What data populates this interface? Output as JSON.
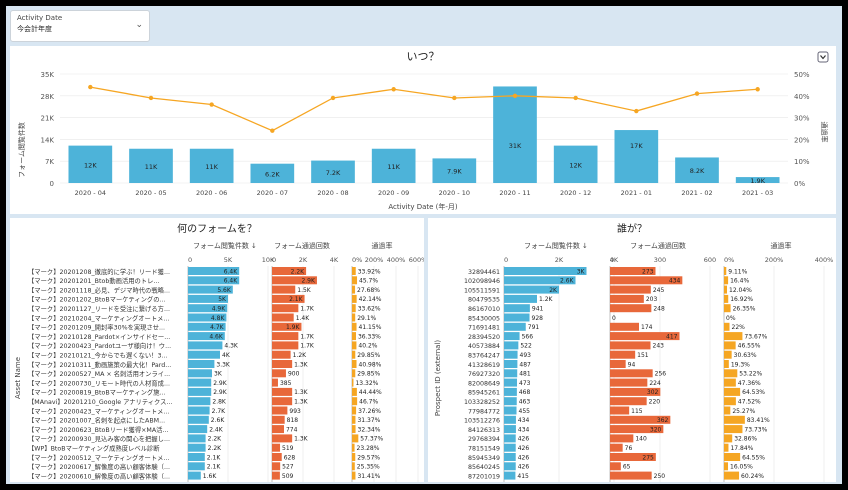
{
  "filter": {
    "label": "Activity Date",
    "value": "今会計年度"
  },
  "top_chart": {
    "title": "いつ？",
    "xlabel": "Activity Date (年-月)",
    "ylabel": "フォーム閲覧件数",
    "y2label": "通過率",
    "ticks_left": [
      "35K",
      "28K",
      "21K",
      "14K",
      "7K",
      "0"
    ],
    "ticks_right": [
      "50%",
      "40%",
      "30%",
      "20%",
      "10%",
      "0%"
    ]
  },
  "left_panel": {
    "title": "何のフォームを？",
    "col1": "フォーム閲覧件数 ↓",
    "col2": "フォーム通過回数",
    "col3": "通過率",
    "axis_name": "Asset Name",
    "ticks1": [
      "0",
      "5K",
      "10K"
    ],
    "ticks2": [
      "0",
      "2K",
      "4K"
    ],
    "ticks3": [
      "0%",
      "200%",
      "400%",
      "600%"
    ]
  },
  "right_panel": {
    "title": "誰が？",
    "col1": "フォーム閲覧件数 ↓",
    "col2": "フォーム通過回数",
    "col3": "通過率",
    "axis_name": "Prospect ID (external)",
    "ticks1": [
      "0",
      "2K",
      "4K"
    ],
    "ticks2": [
      "0",
      "300",
      "600"
    ],
    "ticks3": [
      "0%",
      "200%",
      "400%"
    ]
  },
  "chart_data": [
    {
      "type": "bar",
      "title": "いつ？",
      "categories": [
        "2020 - 04",
        "2020 - 05",
        "2020 - 06",
        "2020 - 07",
        "2020 - 08",
        "2020 - 09",
        "2020 - 10",
        "2020 - 11",
        "2020 - 12",
        "2021 - 01",
        "2021 - 02",
        "2021 - 03"
      ],
      "series": [
        {
          "name": "フォーム閲覧件数",
          "values": [
            12000,
            11000,
            11000,
            6200,
            7200,
            11000,
            7900,
            31000,
            12000,
            17000,
            8200,
            1900
          ],
          "labels": [
            "12K",
            "11K",
            "11K",
            "6.2K",
            "7.2K",
            "11K",
            "7.9K",
            "31K",
            "12K",
            "17K",
            "8.2K",
            "1.9K"
          ]
        },
        {
          "name": "通過率",
          "values": [
            44,
            39,
            36,
            24,
            39,
            43,
            39,
            40,
            39,
            33,
            41,
            43
          ]
        }
      ],
      "ylim": [
        0,
        35000
      ],
      "y2lim": [
        0,
        50
      ]
    },
    {
      "type": "bar",
      "title": "何のフォームを？",
      "rows": [
        {
          "name": "【マーク】20201208_徹底的に学ぶ！リード獲...",
          "views": 6400,
          "vl": "6.4K",
          "subs": 2200,
          "sl": "2.2K",
          "rate": 33.92,
          "rl": "33.92%"
        },
        {
          "name": "【マーク】20201201_Btob動画活用のトレ...",
          "views": 6400,
          "vl": "6.4K",
          "subs": 2900,
          "sl": "2.9K",
          "rate": 45.7,
          "rl": "45.7%"
        },
        {
          "name": "【マーク】20201118_必見、デジマ時代の戦略...",
          "views": 5600,
          "vl": "5.6K",
          "subs": 1500,
          "sl": "1.5K",
          "rate": 27.68,
          "rl": "27.68%"
        },
        {
          "name": "【マーク】20201202_BtoBマーケティングの...",
          "views": 5000,
          "vl": "5K",
          "subs": 2100,
          "sl": "2.1K",
          "rate": 42.14,
          "rl": "42.14%"
        },
        {
          "name": "【マーク】20201127_リードを受注に繋げる方...",
          "views": 4900,
          "vl": "4.9K",
          "subs": 1700,
          "sl": "1.7K",
          "rate": 33.62,
          "rl": "33.62%"
        },
        {
          "name": "【マーク】20210204_マーケティングオートメ...",
          "views": 4800,
          "vl": "4.8K",
          "subs": 1400,
          "sl": "1.4K",
          "rate": 29.1,
          "rl": "29.1%"
        },
        {
          "name": "【マーク】20201209_開封率30%を実現させ...",
          "views": 4700,
          "vl": "4.7K",
          "subs": 1900,
          "sl": "1.9K",
          "rate": 41.15,
          "rl": "41.15%"
        },
        {
          "name": "【マーク】20210128_Pardot×インサイドセー...",
          "views": 4600,
          "vl": "4.6K",
          "subs": 1700,
          "sl": "1.7K",
          "rate": 36.33,
          "rl": "36.33%"
        },
        {
          "name": "【マーク】20200423_Pardotユーザ様向け！ウ...",
          "views": 4300,
          "vl": "4.3K",
          "subs": 1700,
          "sl": "1.7K",
          "rate": 40.2,
          "rl": "40.2%"
        },
        {
          "name": "【マーク】20210121_今からでも遅くない！3...",
          "views": 4000,
          "vl": "4K",
          "subs": 1200,
          "sl": "1.2K",
          "rate": 29.85,
          "rl": "29.85%"
        },
        {
          "name": "【マーク】20210311_動画施策の最大化！Pard...",
          "views": 3300,
          "vl": "3.3K",
          "subs": 1300,
          "sl": "1.3K",
          "rate": 40.98,
          "rl": "40.98%"
        },
        {
          "name": "【マーク】20200527_MA × 名刺活用オンライ...",
          "views": 3000,
          "vl": "3K",
          "subs": 900,
          "sl": "900",
          "rate": 29.85,
          "rl": "29.85%"
        },
        {
          "name": "【マーク】20200730_リモート時代の人材育成...",
          "views": 2900,
          "vl": "2.9K",
          "subs": 385,
          "sl": "385",
          "rate": 13.32,
          "rl": "13.32%"
        },
        {
          "name": "【マーク】20200819_BtoBマーケティング施...",
          "views": 2900,
          "vl": "2.9K",
          "subs": 1300,
          "sl": "1.3K",
          "rate": 44.44,
          "rl": "44.44%"
        },
        {
          "name": "【MAnavi】20201210_Google アナリティクス...",
          "views": 2800,
          "vl": "2.8K",
          "subs": 1300,
          "sl": "1.3K",
          "rate": 46.7,
          "rl": "46.7%"
        },
        {
          "name": "【マーク】20200423_マーケティングオートメ...",
          "views": 2700,
          "vl": "2.7K",
          "subs": 993,
          "sl": "993",
          "rate": 37.26,
          "rl": "37.26%"
        },
        {
          "name": "【マーク】20201007_名刺を起点にしたABM...",
          "views": 2600,
          "vl": "2.6K",
          "subs": 818,
          "sl": "818",
          "rate": 31.37,
          "rl": "31.37%"
        },
        {
          "name": "【マーク】20200623_BtoBリード獲得×MA活...",
          "views": 2400,
          "vl": "2.4K",
          "subs": 774,
          "sl": "774",
          "rate": 32.34,
          "rl": "32.34%"
        },
        {
          "name": "【マーク】20200930_見込み客の関心を把握し...",
          "views": 2200,
          "vl": "2.2K",
          "subs": 1300,
          "sl": "1.3K",
          "rate": 57.37,
          "rl": "57.37%"
        },
        {
          "name": "【WP】BtoBマーケティング成熟度レベル診断",
          "views": 2200,
          "vl": "2.2K",
          "subs": 519,
          "sl": "519",
          "rate": 23.28,
          "rl": "23.28%"
        },
        {
          "name": "【マーク】20200512_マーケティングオートメ...",
          "views": 2100,
          "vl": "2.1K",
          "subs": 628,
          "sl": "628",
          "rate": 29.57,
          "rl": "29.57%"
        },
        {
          "name": "【マーク】20200617_解像度の高い顧客体験（...",
          "views": 2100,
          "vl": "2.1K",
          "subs": 527,
          "sl": "527",
          "rate": 25.35,
          "rl": "25.35%"
        },
        {
          "name": "【マーク】20200610_解像度の高い顧客体験（...",
          "views": 1600,
          "vl": "1.6K",
          "subs": 509,
          "sl": "509",
          "rate": 31.41,
          "rl": "31.41%"
        }
      ]
    },
    {
      "type": "bar",
      "title": "誰が？",
      "rows": [
        {
          "name": "32894461",
          "views": 3000,
          "vl": "3K",
          "subs": 273,
          "sl": "273",
          "rate": 9.11,
          "rl": "9.11%"
        },
        {
          "name": "102098946",
          "views": 2600,
          "vl": "2.6K",
          "subs": 434,
          "sl": "434",
          "rate": 16.4,
          "rl": "16.4%"
        },
        {
          "name": "105511591",
          "views": 2000,
          "vl": "2K",
          "subs": 245,
          "sl": "245",
          "rate": 12.04,
          "rl": "12.04%"
        },
        {
          "name": "80479535",
          "views": 1200,
          "vl": "1.2K",
          "subs": 203,
          "sl": "203",
          "rate": 16.92,
          "rl": "16.92%"
        },
        {
          "name": "86167010",
          "views": 941,
          "vl": "941",
          "subs": 248,
          "sl": "248",
          "rate": 26.35,
          "rl": "26.35%"
        },
        {
          "name": "85430005",
          "views": 928,
          "vl": "928",
          "subs": 0,
          "sl": "0",
          "rate": 0,
          "rl": "0%"
        },
        {
          "name": "71691481",
          "views": 791,
          "vl": "791",
          "subs": 174,
          "sl": "174",
          "rate": 22,
          "rl": "22%"
        },
        {
          "name": "28394520",
          "views": 566,
          "vl": "566",
          "subs": 417,
          "sl": "417",
          "rate": 73.67,
          "rl": "73.67%"
        },
        {
          "name": "40573884",
          "views": 522,
          "vl": "522",
          "subs": 243,
          "sl": "243",
          "rate": 46.55,
          "rl": "46.55%"
        },
        {
          "name": "83764247",
          "views": 493,
          "vl": "493",
          "subs": 151,
          "sl": "151",
          "rate": 30.63,
          "rl": "30.63%"
        },
        {
          "name": "41328619",
          "views": 487,
          "vl": "487",
          "subs": 94,
          "sl": "94",
          "rate": 19.3,
          "rl": "19.3%"
        },
        {
          "name": "76927320",
          "views": 481,
          "vl": "481",
          "subs": 256,
          "sl": "256",
          "rate": 53.22,
          "rl": "53.22%"
        },
        {
          "name": "82008649",
          "views": 473,
          "vl": "473",
          "subs": 224,
          "sl": "224",
          "rate": 47.36,
          "rl": "47.36%"
        },
        {
          "name": "85945261",
          "views": 468,
          "vl": "468",
          "subs": 302,
          "sl": "302",
          "rate": 64.53,
          "rl": "64.53%"
        },
        {
          "name": "103328252",
          "views": 463,
          "vl": "463",
          "subs": 220,
          "sl": "220",
          "rate": 47.52,
          "rl": "47.52%"
        },
        {
          "name": "77984772",
          "views": 455,
          "vl": "455",
          "subs": 115,
          "sl": "115",
          "rate": 25.27,
          "rl": "25.27%"
        },
        {
          "name": "103512276",
          "views": 434,
          "vl": "434",
          "subs": 362,
          "sl": "362",
          "rate": 83.41,
          "rl": "83.41%"
        },
        {
          "name": "84126313",
          "views": 434,
          "vl": "434",
          "subs": 320,
          "sl": "320",
          "rate": 73.73,
          "rl": "73.73%"
        },
        {
          "name": "29768394",
          "views": 426,
          "vl": "426",
          "subs": 140,
          "sl": "140",
          "rate": 32.86,
          "rl": "32.86%"
        },
        {
          "name": "78151549",
          "views": 426,
          "vl": "426",
          "subs": 76,
          "sl": "76",
          "rate": 17.84,
          "rl": "17.84%"
        },
        {
          "name": "85945349",
          "views": 426,
          "vl": "426",
          "subs": 275,
          "sl": "275",
          "rate": 64.55,
          "rl": "64.55%"
        },
        {
          "name": "85640245",
          "views": 426,
          "vl": "426",
          "subs": 65,
          "sl": "65",
          "rate": 16.05,
          "rl": "16.05%"
        },
        {
          "name": "87201019",
          "views": 415,
          "vl": "415",
          "subs": 250,
          "sl": "250",
          "rate": 60.24,
          "rl": "60.24%"
        }
      ]
    }
  ]
}
